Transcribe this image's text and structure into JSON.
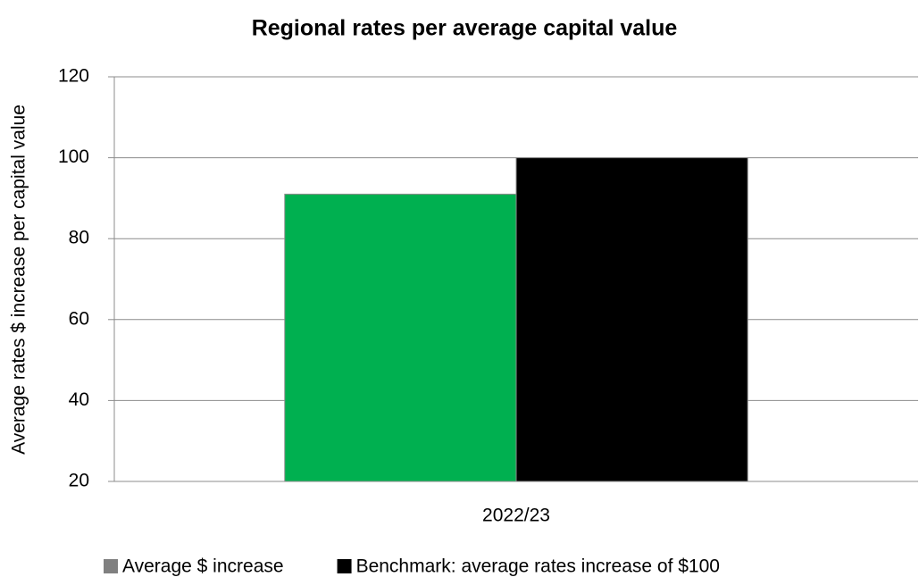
{
  "chart_data": {
    "type": "bar",
    "title": "Regional rates per average capital value",
    "y_label": "Average rates $ increase per capital value",
    "categories": [
      "2022/23"
    ],
    "series": [
      {
        "name": "Average $ increase",
        "color": "#00b050",
        "legend_color": "#808080",
        "values": [
          91
        ]
      },
      {
        "name": "Benchmark: average rates increase of $100",
        "color": "#000000",
        "legend_color": "#000000",
        "values": [
          100
        ]
      }
    ],
    "ylim": [
      20,
      120
    ],
    "yticks": [
      20,
      40,
      60,
      80,
      100,
      120
    ],
    "grid": true,
    "legend": "bottom"
  }
}
